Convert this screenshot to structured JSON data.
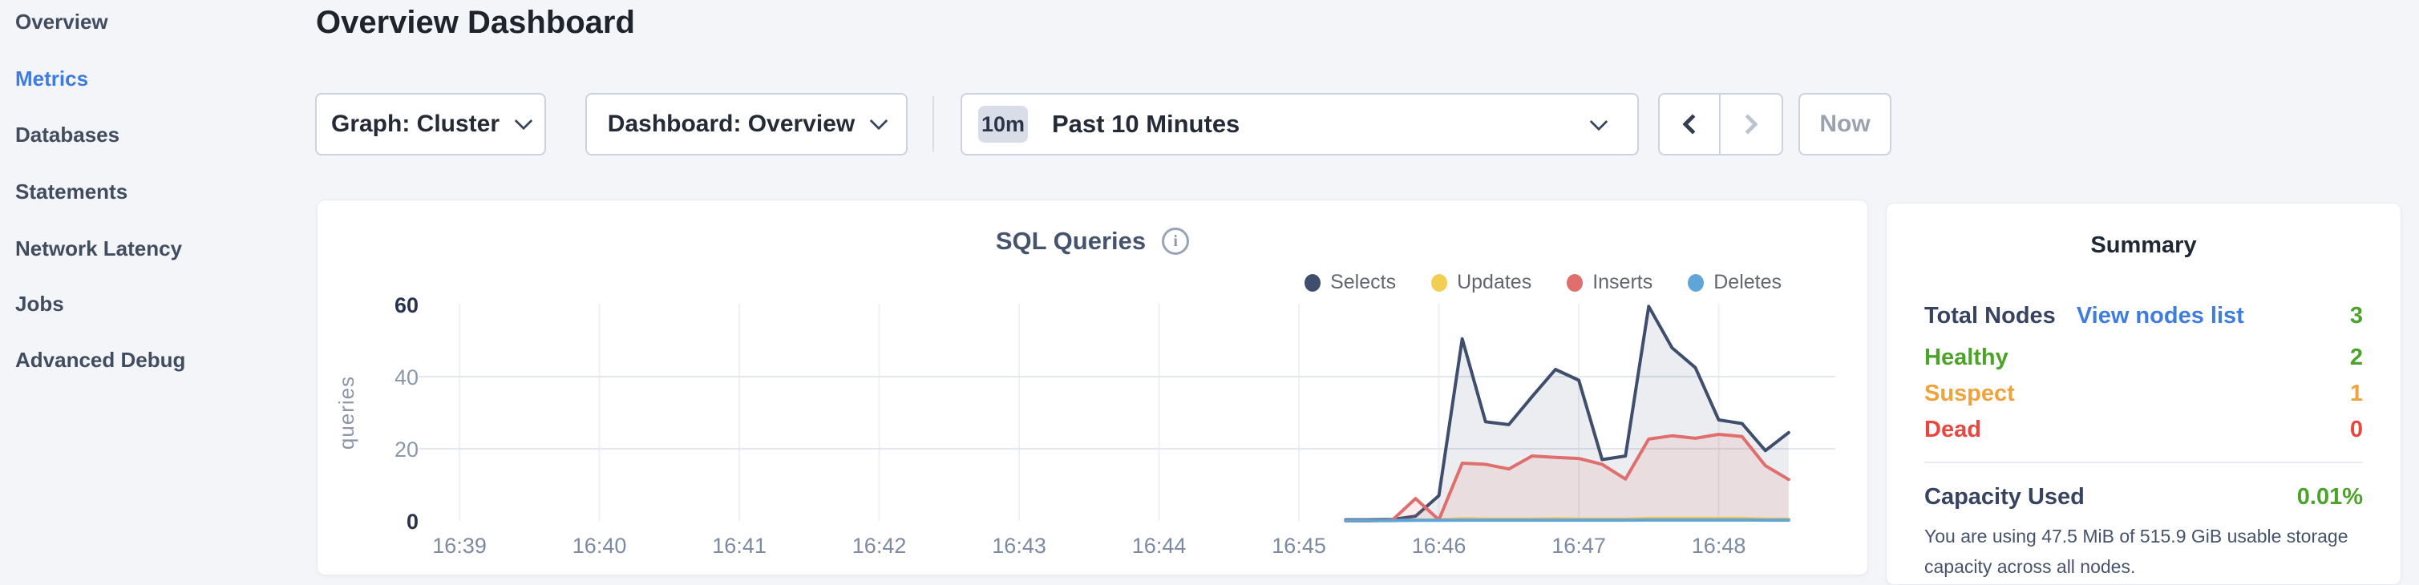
{
  "colors": {
    "green": "#4ba32a",
    "orange": "#efa33d",
    "red": "#e8473f",
    "link_blue": "#3e7ce0",
    "active_nav_blue": "#3e7ce0"
  },
  "sidebar": {
    "items": [
      {
        "label": "Overview",
        "active": false
      },
      {
        "label": "Metrics",
        "active": true
      },
      {
        "label": "Databases",
        "active": false
      },
      {
        "label": "Statements",
        "active": false
      },
      {
        "label": "Network Latency",
        "active": false
      },
      {
        "label": "Jobs",
        "active": false
      },
      {
        "label": "Advanced Debug",
        "active": false
      }
    ]
  },
  "header": {
    "title": "Overview Dashboard",
    "graph_selector_label": "Graph: Cluster",
    "dashboard_selector_label": "Dashboard: Overview",
    "time_window_badge": "10m",
    "time_window_label": "Past 10 Minutes",
    "prev_button": "chevron-left",
    "next_button": "chevron-right",
    "now_button_label": "Now"
  },
  "chart_data": {
    "type": "area",
    "title": "SQL Queries",
    "ylabel": "queries",
    "ylim": [
      0,
      60
    ],
    "yticks": [
      60,
      40,
      20,
      0
    ],
    "grid_values": [
      40,
      20
    ],
    "axis_domain_seconds": 600,
    "ticks": [
      {
        "label": "16:39",
        "offset_s": 10
      },
      {
        "label": "16:40",
        "offset_s": 70
      },
      {
        "label": "16:41",
        "offset_s": 130
      },
      {
        "label": "16:42",
        "offset_s": 190
      },
      {
        "label": "16:43",
        "offset_s": 250
      },
      {
        "label": "16:44",
        "offset_s": 310
      },
      {
        "label": "16:45",
        "offset_s": 370
      },
      {
        "label": "16:46",
        "offset_s": 430
      },
      {
        "label": "16:47",
        "offset_s": 490
      },
      {
        "label": "16:48",
        "offset_s": 550
      }
    ],
    "point_offsets_s": [
      390,
      400,
      410,
      420,
      430,
      440,
      450,
      460,
      470,
      480,
      490,
      500,
      510,
      520,
      530,
      540,
      550,
      560,
      570,
      580
    ],
    "series": [
      {
        "name": "Selects",
        "color": "#3f4e6d",
        "fill": "rgba(63,78,109,0.10)",
        "values": [
          0.3,
          0.3,
          0.4,
          1.3,
          7,
          50.5,
          27.5,
          26.7,
          34.5,
          42,
          39,
          17,
          18,
          59.5,
          48,
          42.5,
          28,
          27,
          19.5,
          24.5
        ]
      },
      {
        "name": "Updates",
        "color": "#f2ce51",
        "fill": "rgba(242,206,81,0.10)",
        "values": [
          0.1,
          0.1,
          0.1,
          0.2,
          0.3,
          0.6,
          0.5,
          0.5,
          0.5,
          0.6,
          0.5,
          0.5,
          0.5,
          0.7,
          0.7,
          0.7,
          0.7,
          0.7,
          0.5,
          0.5
        ]
      },
      {
        "name": "Inserts",
        "color": "#e06e6d",
        "fill": "rgba(224,110,109,0.12)",
        "values": [
          0,
          0,
          0.2,
          6.2,
          0.3,
          16,
          15.7,
          14.4,
          18,
          17.6,
          17.3,
          15.7,
          11.6,
          22.7,
          23.6,
          22.9,
          24,
          23.4,
          15.3,
          11.5
        ]
      },
      {
        "name": "Deletes",
        "color": "#60a5d8",
        "fill": "rgba(96,165,216,0.10)",
        "values": [
          0.1,
          0.1,
          0.1,
          0.15,
          0.15,
          0.2,
          0.2,
          0.2,
          0.2,
          0.2,
          0.2,
          0.2,
          0.2,
          0.25,
          0.25,
          0.25,
          0.25,
          0.25,
          0.2,
          0.2
        ]
      }
    ]
  },
  "summary": {
    "title": "Summary",
    "total_nodes_label": "Total Nodes",
    "view_nodes_link": "View nodes list",
    "total_nodes_value": "3",
    "rows": [
      {
        "label": "Healthy",
        "value": "2",
        "color_key": "green"
      },
      {
        "label": "Suspect",
        "value": "1",
        "color_key": "orange"
      },
      {
        "label": "Dead",
        "value": "0",
        "color_key": "red"
      }
    ],
    "capacity_label": "Capacity Used",
    "capacity_value": "0.01%",
    "capacity_description": "You are using 47.5 MiB of 515.9 GiB usable storage capacity across all nodes."
  }
}
